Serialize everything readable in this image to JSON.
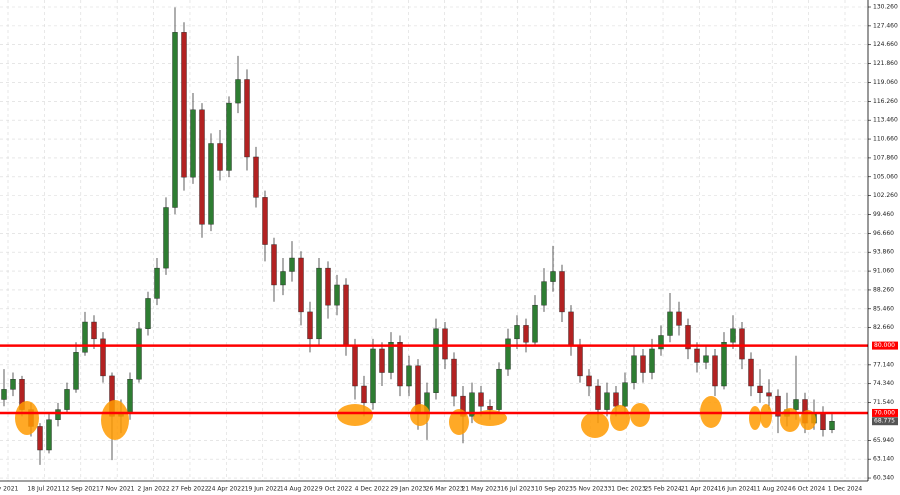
{
  "chart_data": {
    "type": "candlestick",
    "candles": [
      [
        72.0,
        76.5,
        71.0,
        73.5
      ],
      [
        73.5,
        76.0,
        72.5,
        75.0
      ],
      [
        75.0,
        75.5,
        69.5,
        70.5
      ],
      [
        70.5,
        71.5,
        66.5,
        68.0
      ],
      [
        68.0,
        68.5,
        62.3,
        64.5
      ],
      [
        64.5,
        70.0,
        64.0,
        69.0
      ],
      [
        69.0,
        71.5,
        68.0,
        70.5
      ],
      [
        70.5,
        74.5,
        70.0,
        73.5
      ],
      [
        73.5,
        80.5,
        73.0,
        79.0
      ],
      [
        79.0,
        85.0,
        78.5,
        83.5
      ],
      [
        83.5,
        84.5,
        79.5,
        81.0
      ],
      [
        81.0,
        82.0,
        74.5,
        75.5
      ],
      [
        75.5,
        76.0,
        63.0,
        69.5
      ],
      [
        69.5,
        72.0,
        67.0,
        70.0
      ],
      [
        70.0,
        76.0,
        69.0,
        75.0
      ],
      [
        75.0,
        83.5,
        74.5,
        82.5
      ],
      [
        82.5,
        88.0,
        81.5,
        87.0
      ],
      [
        87.0,
        93.0,
        86.0,
        91.5
      ],
      [
        91.5,
        102.0,
        90.5,
        100.5
      ],
      [
        100.5,
        130.2,
        99.5,
        126.5
      ],
      [
        126.5,
        128.0,
        103.0,
        105.0
      ],
      [
        105.0,
        117.5,
        104.0,
        115.0
      ],
      [
        115.0,
        116.0,
        96.0,
        98.0
      ],
      [
        98.0,
        111.5,
        97.0,
        110.0
      ],
      [
        110.0,
        112.0,
        104.5,
        106.0
      ],
      [
        106.0,
        117.0,
        105.0,
        116.0
      ],
      [
        116.0,
        123.0,
        114.5,
        119.5
      ],
      [
        119.5,
        121.0,
        106.0,
        108.0
      ],
      [
        108.0,
        109.5,
        100.5,
        102.0
      ],
      [
        102.0,
        103.0,
        92.5,
        95.0
      ],
      [
        95.0,
        96.0,
        86.5,
        89.0
      ],
      [
        89.0,
        93.0,
        87.5,
        91.0
      ],
      [
        91.0,
        95.5,
        89.5,
        93.0
      ],
      [
        93.0,
        94.0,
        83.0,
        85.0
      ],
      [
        85.0,
        86.5,
        79.0,
        81.0
      ],
      [
        81.0,
        93.0,
        80.0,
        91.5
      ],
      [
        91.5,
        92.5,
        84.0,
        86.0
      ],
      [
        86.0,
        90.5,
        84.5,
        89.0
      ],
      [
        89.0,
        90.0,
        78.5,
        80.0
      ],
      [
        80.0,
        81.0,
        72.0,
        74.0
      ],
      [
        74.0,
        75.5,
        69.5,
        71.5
      ],
      [
        71.5,
        81.0,
        70.5,
        79.5
      ],
      [
        79.5,
        80.5,
        74.0,
        76.0
      ],
      [
        76.0,
        82.0,
        75.0,
        80.5
      ],
      [
        80.5,
        81.5,
        72.5,
        74.0
      ],
      [
        74.0,
        78.5,
        72.5,
        77.0
      ],
      [
        77.0,
        78.0,
        67.5,
        70.0
      ],
      [
        70.0,
        74.5,
        66.0,
        73.0
      ],
      [
        73.0,
        84.0,
        72.0,
        82.5
      ],
      [
        82.5,
        83.5,
        76.5,
        78.0
      ],
      [
        78.0,
        79.0,
        71.0,
        72.5
      ],
      [
        72.5,
        74.0,
        65.5,
        69.5
      ],
      [
        69.5,
        74.5,
        68.5,
        73.0
      ],
      [
        73.0,
        74.0,
        69.5,
        71.0
      ],
      [
        71.0,
        72.0,
        69.0,
        70.5
      ],
      [
        70.5,
        77.5,
        70.0,
        76.5
      ],
      [
        76.5,
        82.5,
        75.5,
        81.0
      ],
      [
        81.0,
        84.5,
        79.5,
        83.0
      ],
      [
        83.0,
        84.0,
        79.0,
        80.5
      ],
      [
        80.5,
        87.5,
        80.0,
        86.0
      ],
      [
        86.0,
        91.5,
        85.0,
        89.5
      ],
      [
        89.5,
        94.8,
        88.0,
        91.0
      ],
      [
        91.0,
        92.0,
        83.5,
        85.0
      ],
      [
        85.0,
        86.0,
        78.5,
        80.0
      ],
      [
        80.0,
        81.0,
        74.5,
        75.5
      ],
      [
        75.5,
        76.5,
        72.5,
        74.0
      ],
      [
        74.0,
        75.0,
        68.5,
        70.5
      ],
      [
        70.5,
        74.5,
        69.5,
        73.0
      ],
      [
        73.0,
        74.0,
        69.5,
        71.0
      ],
      [
        71.0,
        76.0,
        70.0,
        74.5
      ],
      [
        74.5,
        80.0,
        73.5,
        78.5
      ],
      [
        78.5,
        79.5,
        74.5,
        76.0
      ],
      [
        76.0,
        81.0,
        75.0,
        79.5
      ],
      [
        79.5,
        83.0,
        78.5,
        81.5
      ],
      [
        81.5,
        87.8,
        80.5,
        85.0
      ],
      [
        85.0,
        86.5,
        81.5,
        83.0
      ],
      [
        83.0,
        84.0,
        78.0,
        79.5
      ],
      [
        79.5,
        80.5,
        76.0,
        77.5
      ],
      [
        77.5,
        80.0,
        76.5,
        78.5
      ],
      [
        78.5,
        79.5,
        72.5,
        74.0
      ],
      [
        74.0,
        82.0,
        73.5,
        80.5
      ],
      [
        80.5,
        84.5,
        79.5,
        82.5
      ],
      [
        82.5,
        83.5,
        76.5,
        78.0
      ],
      [
        78.0,
        79.0,
        72.5,
        74.0
      ],
      [
        74.0,
        76.5,
        71.5,
        73.0
      ],
      [
        73.0,
        75.0,
        70.5,
        72.5
      ],
      [
        72.5,
        73.5,
        67.0,
        69.5
      ],
      [
        69.5,
        73.0,
        68.0,
        70.5
      ],
      [
        70.5,
        78.5,
        69.0,
        72.0
      ],
      [
        72.0,
        73.0,
        67.0,
        68.5
      ],
      [
        68.5,
        72.0,
        67.5,
        70.0
      ],
      [
        70.0,
        71.0,
        66.5,
        67.5
      ],
      [
        67.5,
        70.0,
        67.0,
        68.775
      ]
    ],
    "up_color": "#2e7d32",
    "down_color": "#b22222",
    "x_labels": [
      "y 2021",
      "18 Jul 2021",
      "12 Sep 2021",
      "7 Nov 2021",
      "2 Jan 2022",
      "27 Feb 2022",
      "24 Apr 2022",
      "19 Jun 2022",
      "14 Aug 2022",
      "9 Oct 2022",
      "4 Dec 2022",
      "29 Jan 2023",
      "26 Mar 2023",
      "21 May 2023",
      "16 Jul 2023",
      "10 Sep 2023",
      "5 Nov 2023",
      "31 Dec 2023",
      "25 Feb 2024",
      "21 Apr 2024",
      "16 Jun 2024",
      "11 Aug 2024",
      "6 Oct 2024",
      "1 Dec 2024"
    ],
    "ylim": [
      59.9,
      131.3
    ],
    "yticks": [
      {
        "value": 130.26,
        "label": "130.260"
      },
      {
        "value": 127.46,
        "label": "127.460"
      },
      {
        "value": 124.66,
        "label": "124.660"
      },
      {
        "value": 121.86,
        "label": "121.860"
      },
      {
        "value": 119.06,
        "label": "119.060"
      },
      {
        "value": 116.26,
        "label": "116.260"
      },
      {
        "value": 113.46,
        "label": "113.460"
      },
      {
        "value": 110.66,
        "label": "110.660"
      },
      {
        "value": 107.86,
        "label": "107.860"
      },
      {
        "value": 105.06,
        "label": "105.060"
      },
      {
        "value": 102.26,
        "label": "102.260"
      },
      {
        "value": 99.46,
        "label": "99.460"
      },
      {
        "value": 96.66,
        "label": "96.660"
      },
      {
        "value": 93.86,
        "label": "93.860"
      },
      {
        "value": 91.06,
        "label": "91.060"
      },
      {
        "value": 88.26,
        "label": "88.260"
      },
      {
        "value": 85.46,
        "label": "85.460"
      },
      {
        "value": 82.66,
        "label": "82.660"
      },
      {
        "value": 77.14,
        "label": "77.140"
      },
      {
        "value": 74.34,
        "label": "74.340"
      },
      {
        "value": 71.54,
        "label": "71.540"
      },
      {
        "value": 65.94,
        "label": "65.940"
      },
      {
        "value": 63.14,
        "label": "63.140"
      },
      {
        "value": 60.34,
        "label": "60.340"
      }
    ],
    "hlines": [
      {
        "value": 80,
        "label": "80.000"
      },
      {
        "value": 70,
        "label": "70.000"
      }
    ],
    "hline_color": "#ff0000",
    "grid": true
  }
}
